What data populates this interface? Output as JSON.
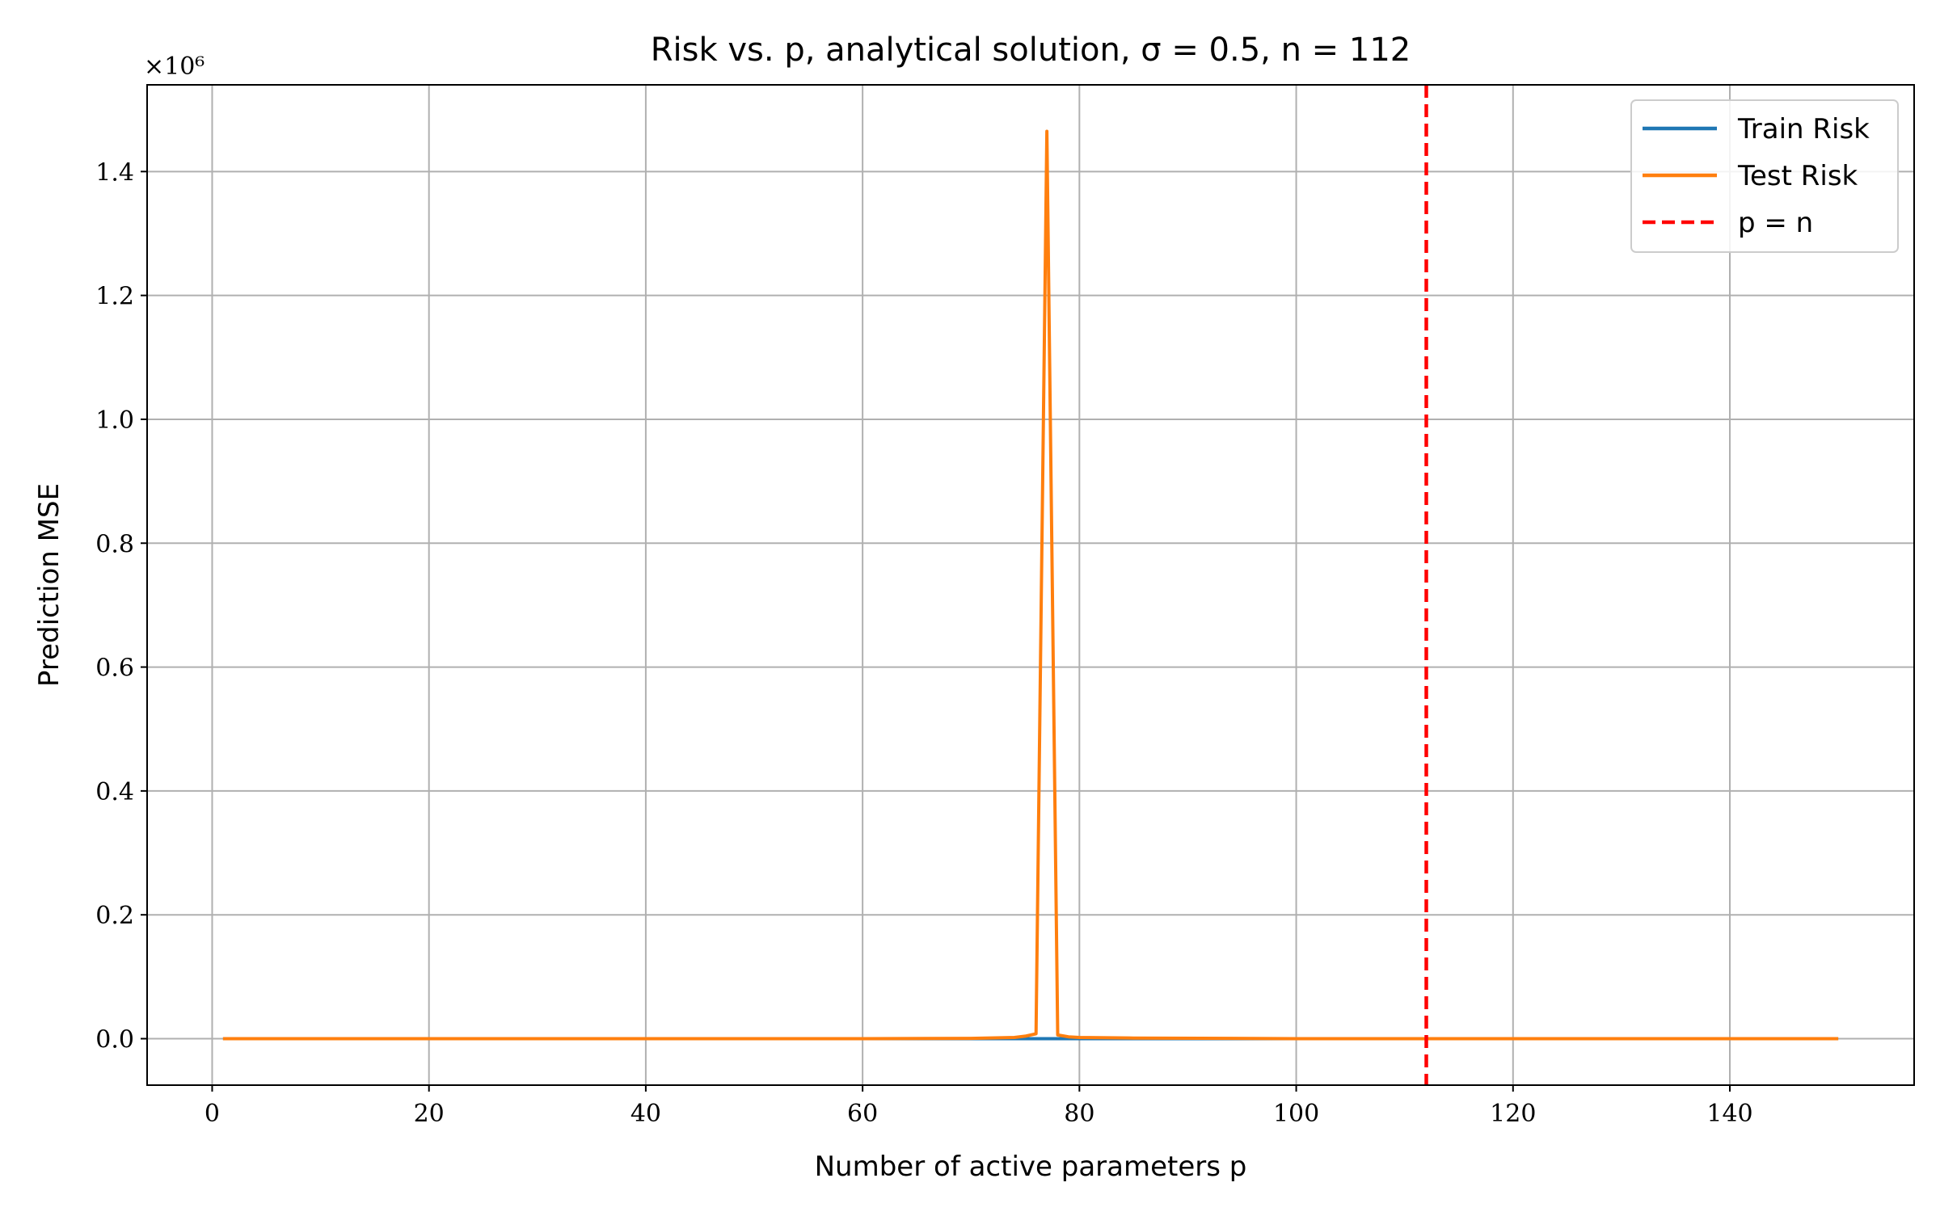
{
  "chart_data": {
    "type": "line",
    "title": "Risk vs. p, analytical solution, σ = 0.5, n = 112",
    "xlabel": "Number of active parameters p",
    "ylabel": "Prediction MSE",
    "y_scale_label": "×10⁶",
    "xlim": [
      -6,
      157
    ],
    "ylim": [
      -0.075,
      1.54
    ],
    "x_ticks": [
      0,
      20,
      40,
      60,
      80,
      100,
      120,
      140
    ],
    "y_ticks": [
      0.0,
      0.2,
      0.4,
      0.6,
      0.8,
      1.0,
      1.2,
      1.4
    ],
    "y_tick_labels": [
      "0.0",
      "0.2",
      "0.4",
      "0.6",
      "0.8",
      "1.0",
      "1.2",
      "1.4"
    ],
    "grid": true,
    "legend_position": "top-right",
    "series": [
      {
        "name": "Train Risk",
        "color": "#1f77b4",
        "x": [
          1,
          150
        ],
        "y": [
          0.0,
          0.0
        ]
      },
      {
        "name": "Test Risk",
        "color": "#ff7f0e",
        "x": [
          1,
          20,
          40,
          60,
          70,
          74,
          75,
          76,
          77,
          78,
          79,
          80,
          85,
          100,
          120,
          150
        ],
        "y": [
          0.0,
          0.0,
          0.0,
          0.0,
          0.0005,
          0.002,
          0.004,
          0.008,
          1.465,
          0.006,
          0.003,
          0.002,
          0.001,
          0.0,
          0.0,
          0.0
        ]
      }
    ],
    "vlines": [
      {
        "name": "p = n",
        "x": 112,
        "color": "#ff0000",
        "style": "dashed"
      }
    ]
  }
}
